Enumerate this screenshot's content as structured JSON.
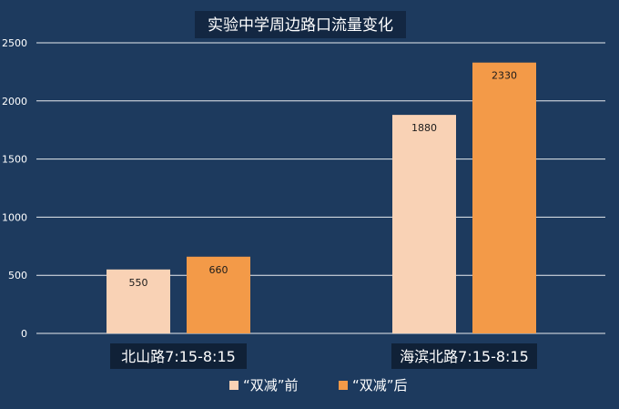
{
  "chart_data": {
    "type": "bar",
    "title": "实验中学周边路口流量变化",
    "categories": [
      "北山路7:15-8:15",
      "海滨北路7:15-8:15"
    ],
    "series": [
      {
        "name": "“双减”前",
        "values": [
          550,
          1880
        ],
        "color": "#f9d2b5"
      },
      {
        "name": "“双减”后",
        "values": [
          660,
          2330
        ],
        "color": "#f39a48"
      }
    ],
    "yticks": [
      0,
      500,
      1000,
      1500,
      2000,
      2500
    ],
    "ylim": [
      0,
      2500
    ],
    "grid": true,
    "legend_position": "bottom"
  },
  "colors": {
    "background": "#1d3a5e",
    "text": "#ffffff",
    "gridline": "#ffffff"
  }
}
